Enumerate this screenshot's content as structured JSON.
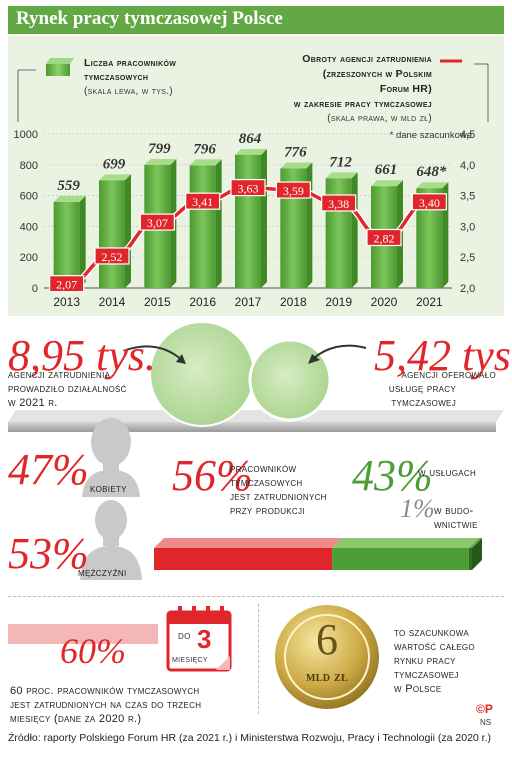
{
  "title": "Rynek pracy tymczasowej Polsce",
  "legend": {
    "bars_label_1": "Liczba pracowników",
    "bars_label_2": "tymczasowych",
    "bars_scale": "(skala lewa, w tys.)",
    "line_label_1": "Obroty agencji zatrudnienia",
    "line_label_2": "(zrzeszonych w Polskim",
    "line_label_3": "Forum HR)",
    "line_label_4": "w zakresie pracy tymczasowej",
    "line_scale": "(skala prawa, w mld zł)",
    "estimate_note": "* dane szacunkowe"
  },
  "chart_data": {
    "type": "bar",
    "categories": [
      "2013",
      "2014",
      "2015",
      "2016",
      "2017",
      "2018",
      "2019",
      "2020",
      "2021"
    ],
    "series": [
      {
        "name": "Liczba pracowników tymczasowych",
        "axis": "left",
        "values": [
          559,
          699,
          799,
          796,
          864,
          776,
          712,
          661,
          648
        ],
        "labels": [
          "559",
          "699",
          "799",
          "796",
          "864",
          "776",
          "712",
          "661",
          "648*"
        ],
        "color": "#5aa83c"
      },
      {
        "name": "Obroty agencji zatrudnienia",
        "axis": "right",
        "type": "line",
        "values": [
          2.07,
          2.52,
          3.07,
          3.41,
          3.63,
          3.59,
          3.38,
          2.82,
          3.4
        ],
        "labels": [
          "2,07",
          "2,52",
          "3,07",
          "3,41",
          "3,63",
          "3,59",
          "3,38",
          "2,82",
          "3,40"
        ],
        "color": "#e0262a"
      }
    ],
    "y_left": {
      "min": 0,
      "max": 1000,
      "ticks": [
        "0",
        "200",
        "400",
        "600",
        "800",
        "1000"
      ]
    },
    "y_right": {
      "min": 2.0,
      "max": 4.5,
      "ticks": [
        "2,0",
        "2,5",
        "3,0",
        "3,5",
        "4,0",
        "4,5"
      ]
    }
  },
  "agencies": {
    "value": "8,95 tys.",
    "text": "agencji zatrudnienia prowadziło działalność w 2021 r.",
    "lines": [
      "agencji zatrudnienia",
      "prowadziło działalność",
      "w 2021 r."
    ]
  },
  "agencies_service": {
    "value": "5,42 tys.",
    "lines": [
      "agencji oferowało",
      "usługę pracy",
      "tymczasowej"
    ]
  },
  "gender": {
    "women_pct": "47%",
    "women_label": "kobiety",
    "men_pct": "53%",
    "men_label": "mężczyźni"
  },
  "sectors": {
    "production_pct": "56%",
    "production_lines": [
      "pracowników",
      "tymczasowych",
      "jest zatrudnionych",
      "przy produkcji"
    ],
    "services_pct": "43%",
    "services_label": "w usługach",
    "construction_pct": "1%",
    "construction_lines": [
      "w budo-",
      "wnictwie"
    ],
    "production_value": 56,
    "services_value": 43,
    "construction_value": 1,
    "colors": {
      "production": "#e0262a",
      "services": "#4e9e36",
      "construction": "#2f6b25"
    }
  },
  "contracts": {
    "pct": "60%",
    "calendar_top": "do",
    "calendar_num": "3",
    "calendar_bottom": "miesięcy",
    "lines": [
      "60 proc. pracowników tymczasowych",
      "jest zatrudnionych na czas do trzech",
      "miesięcy (dane za 2020 r.)"
    ]
  },
  "market": {
    "coin_num": "6",
    "coin_unit": "mld zł",
    "lines": [
      "to szacunkowa",
      "wartość całego",
      "rynku pracy",
      "tymczasowej",
      "w Polsce"
    ]
  },
  "credits": {
    "logo": "©P",
    "initials": "NS"
  },
  "source": "Źródło: raporty Polskiego Forum HR (za 2021 r.) i Ministerstwa Rozwoju, Pracy i Technologii (za 2020 r.)"
}
